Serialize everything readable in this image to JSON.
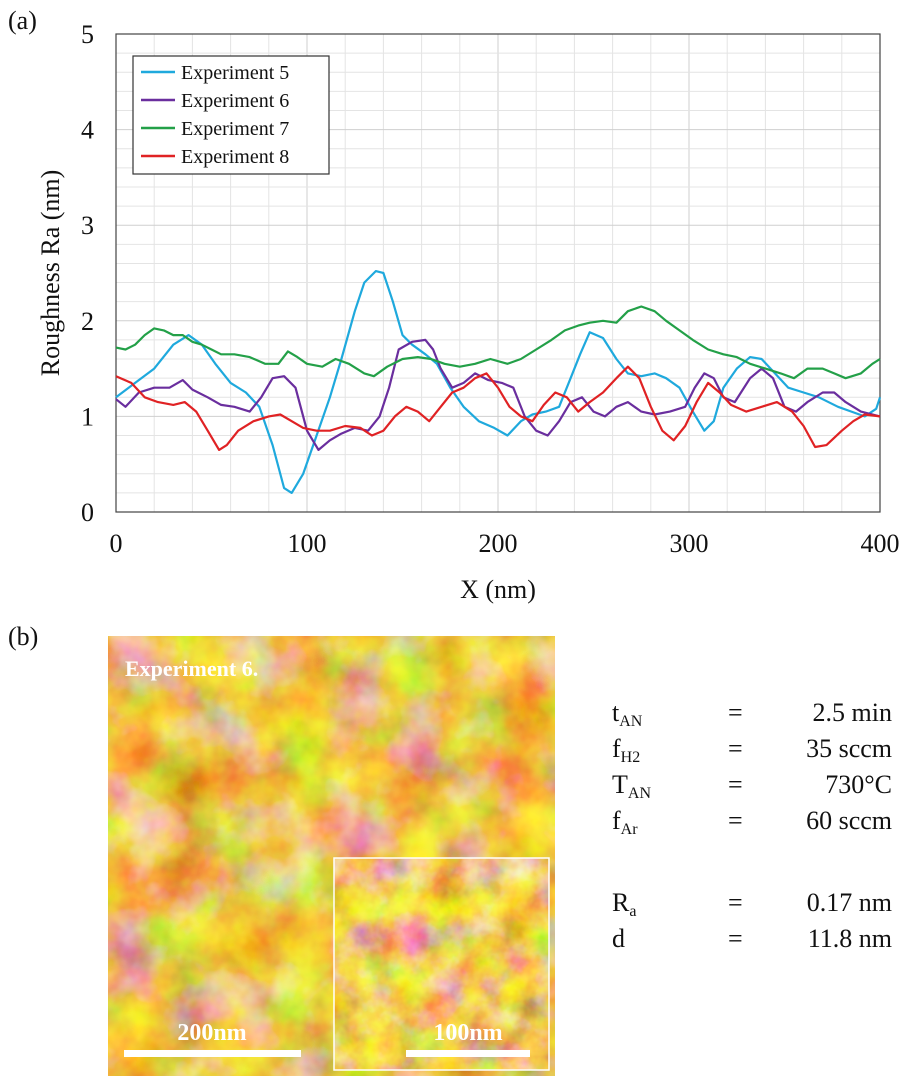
{
  "panel_a_label": "(a)",
  "panel_b_label": "(b)",
  "chart_data": {
    "type": "line",
    "title": "",
    "xlabel": "X (nm)",
    "ylabel": "Roughness Ra (nm)",
    "xlim": [
      0,
      400
    ],
    "ylim": [
      0,
      5
    ],
    "xticks": [
      "0",
      "100",
      "200",
      "300",
      "400"
    ],
    "yticks": [
      "0",
      "1",
      "2",
      "3",
      "4",
      "5"
    ],
    "grid": true,
    "legend_position": "top-left",
    "series": [
      {
        "name": "Experiment 5",
        "color": "#1fa9dd",
        "points": [
          [
            0,
            1.2
          ],
          [
            10,
            1.35
          ],
          [
            20,
            1.5
          ],
          [
            30,
            1.75
          ],
          [
            38,
            1.85
          ],
          [
            45,
            1.75
          ],
          [
            52,
            1.55
          ],
          [
            60,
            1.35
          ],
          [
            68,
            1.25
          ],
          [
            75,
            1.1
          ],
          [
            82,
            0.7
          ],
          [
            88,
            0.25
          ],
          [
            92,
            0.2
          ],
          [
            98,
            0.4
          ],
          [
            105,
            0.8
          ],
          [
            112,
            1.2
          ],
          [
            118,
            1.6
          ],
          [
            125,
            2.1
          ],
          [
            130,
            2.4
          ],
          [
            136,
            2.52
          ],
          [
            140,
            2.5
          ],
          [
            145,
            2.2
          ],
          [
            150,
            1.85
          ],
          [
            155,
            1.75
          ],
          [
            162,
            1.65
          ],
          [
            168,
            1.55
          ],
          [
            175,
            1.3
          ],
          [
            182,
            1.1
          ],
          [
            190,
            0.95
          ],
          [
            198,
            0.88
          ],
          [
            205,
            0.8
          ],
          [
            212,
            0.95
          ],
          [
            218,
            1.02
          ],
          [
            225,
            1.05
          ],
          [
            232,
            1.1
          ],
          [
            238,
            1.4
          ],
          [
            243,
            1.65
          ],
          [
            248,
            1.88
          ],
          [
            255,
            1.82
          ],
          [
            262,
            1.6
          ],
          [
            268,
            1.45
          ],
          [
            275,
            1.42
          ],
          [
            282,
            1.45
          ],
          [
            288,
            1.4
          ],
          [
            295,
            1.3
          ],
          [
            302,
            1.05
          ],
          [
            308,
            0.85
          ],
          [
            313,
            0.95
          ],
          [
            318,
            1.3
          ],
          [
            325,
            1.5
          ],
          [
            332,
            1.62
          ],
          [
            338,
            1.6
          ],
          [
            345,
            1.45
          ],
          [
            352,
            1.3
          ],
          [
            360,
            1.25
          ],
          [
            368,
            1.2
          ],
          [
            378,
            1.1
          ],
          [
            385,
            1.05
          ],
          [
            392,
            1.0
          ],
          [
            398,
            1.08
          ],
          [
            400,
            1.2
          ]
        ]
      },
      {
        "name": "Experiment 6",
        "color": "#6a2e9e",
        "points": [
          [
            0,
            1.18
          ],
          [
            5,
            1.1
          ],
          [
            12,
            1.25
          ],
          [
            20,
            1.3
          ],
          [
            28,
            1.3
          ],
          [
            35,
            1.38
          ],
          [
            40,
            1.28
          ],
          [
            48,
            1.2
          ],
          [
            55,
            1.12
          ],
          [
            62,
            1.1
          ],
          [
            70,
            1.05
          ],
          [
            76,
            1.2
          ],
          [
            82,
            1.4
          ],
          [
            88,
            1.42
          ],
          [
            94,
            1.3
          ],
          [
            100,
            0.85
          ],
          [
            106,
            0.65
          ],
          [
            112,
            0.75
          ],
          [
            118,
            0.82
          ],
          [
            125,
            0.88
          ],
          [
            132,
            0.85
          ],
          [
            138,
            1.0
          ],
          [
            143,
            1.3
          ],
          [
            148,
            1.7
          ],
          [
            155,
            1.78
          ],
          [
            162,
            1.8
          ],
          [
            166,
            1.7
          ],
          [
            170,
            1.5
          ],
          [
            176,
            1.3
          ],
          [
            182,
            1.35
          ],
          [
            188,
            1.45
          ],
          [
            195,
            1.38
          ],
          [
            202,
            1.35
          ],
          [
            208,
            1.3
          ],
          [
            214,
            1.0
          ],
          [
            220,
            0.85
          ],
          [
            226,
            0.8
          ],
          [
            232,
            0.95
          ],
          [
            238,
            1.15
          ],
          [
            244,
            1.2
          ],
          [
            250,
            1.05
          ],
          [
            256,
            1.0
          ],
          [
            262,
            1.1
          ],
          [
            268,
            1.15
          ],
          [
            275,
            1.05
          ],
          [
            282,
            1.02
          ],
          [
            290,
            1.05
          ],
          [
            298,
            1.1
          ],
          [
            303,
            1.3
          ],
          [
            308,
            1.45
          ],
          [
            313,
            1.4
          ],
          [
            318,
            1.2
          ],
          [
            324,
            1.15
          ],
          [
            332,
            1.4
          ],
          [
            338,
            1.5
          ],
          [
            344,
            1.4
          ],
          [
            350,
            1.1
          ],
          [
            356,
            1.05
          ],
          [
            362,
            1.15
          ],
          [
            370,
            1.25
          ],
          [
            376,
            1.25
          ],
          [
            382,
            1.15
          ],
          [
            390,
            1.05
          ],
          [
            400,
            1.0
          ]
        ]
      },
      {
        "name": "Experiment 7",
        "color": "#23a048",
        "points": [
          [
            0,
            1.72
          ],
          [
            5,
            1.7
          ],
          [
            10,
            1.75
          ],
          [
            15,
            1.85
          ],
          [
            20,
            1.92
          ],
          [
            25,
            1.9
          ],
          [
            30,
            1.85
          ],
          [
            35,
            1.85
          ],
          [
            40,
            1.78
          ],
          [
            45,
            1.75
          ],
          [
            50,
            1.7
          ],
          [
            55,
            1.65
          ],
          [
            62,
            1.65
          ],
          [
            70,
            1.62
          ],
          [
            78,
            1.55
          ],
          [
            85,
            1.55
          ],
          [
            90,
            1.68
          ],
          [
            95,
            1.62
          ],
          [
            100,
            1.55
          ],
          [
            108,
            1.52
          ],
          [
            115,
            1.6
          ],
          [
            122,
            1.55
          ],
          [
            130,
            1.45
          ],
          [
            135,
            1.42
          ],
          [
            142,
            1.52
          ],
          [
            150,
            1.6
          ],
          [
            158,
            1.62
          ],
          [
            165,
            1.6
          ],
          [
            172,
            1.55
          ],
          [
            180,
            1.52
          ],
          [
            188,
            1.55
          ],
          [
            196,
            1.6
          ],
          [
            205,
            1.55
          ],
          [
            212,
            1.6
          ],
          [
            220,
            1.7
          ],
          [
            228,
            1.8
          ],
          [
            235,
            1.9
          ],
          [
            242,
            1.95
          ],
          [
            248,
            1.98
          ],
          [
            255,
            2.0
          ],
          [
            262,
            1.98
          ],
          [
            268,
            2.1
          ],
          [
            275,
            2.15
          ],
          [
            282,
            2.1
          ],
          [
            288,
            2.0
          ],
          [
            295,
            1.9
          ],
          [
            302,
            1.8
          ],
          [
            310,
            1.7
          ],
          [
            318,
            1.65
          ],
          [
            325,
            1.62
          ],
          [
            332,
            1.55
          ],
          [
            340,
            1.5
          ],
          [
            348,
            1.45
          ],
          [
            355,
            1.4
          ],
          [
            362,
            1.5
          ],
          [
            370,
            1.5
          ],
          [
            376,
            1.45
          ],
          [
            382,
            1.4
          ],
          [
            390,
            1.45
          ],
          [
            396,
            1.55
          ],
          [
            400,
            1.6
          ]
        ]
      },
      {
        "name": "Experiment 8",
        "color": "#e02224",
        "points": [
          [
            0,
            1.42
          ],
          [
            8,
            1.35
          ],
          [
            15,
            1.2
          ],
          [
            22,
            1.15
          ],
          [
            30,
            1.12
          ],
          [
            36,
            1.15
          ],
          [
            42,
            1.05
          ],
          [
            48,
            0.85
          ],
          [
            54,
            0.65
          ],
          [
            58,
            0.7
          ],
          [
            64,
            0.85
          ],
          [
            72,
            0.95
          ],
          [
            80,
            1.0
          ],
          [
            86,
            1.02
          ],
          [
            92,
            0.95
          ],
          [
            98,
            0.88
          ],
          [
            105,
            0.85
          ],
          [
            112,
            0.85
          ],
          [
            120,
            0.9
          ],
          [
            128,
            0.88
          ],
          [
            134,
            0.8
          ],
          [
            140,
            0.85
          ],
          [
            146,
            1.0
          ],
          [
            152,
            1.1
          ],
          [
            158,
            1.05
          ],
          [
            164,
            0.95
          ],
          [
            170,
            1.1
          ],
          [
            176,
            1.25
          ],
          [
            182,
            1.3
          ],
          [
            188,
            1.4
          ],
          [
            194,
            1.45
          ],
          [
            200,
            1.3
          ],
          [
            206,
            1.1
          ],
          [
            212,
            1.0
          ],
          [
            218,
            0.95
          ],
          [
            224,
            1.12
          ],
          [
            230,
            1.25
          ],
          [
            236,
            1.2
          ],
          [
            242,
            1.05
          ],
          [
            248,
            1.15
          ],
          [
            255,
            1.25
          ],
          [
            262,
            1.4
          ],
          [
            268,
            1.52
          ],
          [
            274,
            1.4
          ],
          [
            280,
            1.1
          ],
          [
            286,
            0.85
          ],
          [
            292,
            0.75
          ],
          [
            298,
            0.9
          ],
          [
            304,
            1.15
          ],
          [
            310,
            1.35
          ],
          [
            316,
            1.25
          ],
          [
            322,
            1.12
          ],
          [
            330,
            1.05
          ],
          [
            338,
            1.1
          ],
          [
            346,
            1.15
          ],
          [
            354,
            1.05
          ],
          [
            360,
            0.9
          ],
          [
            366,
            0.68
          ],
          [
            372,
            0.7
          ],
          [
            380,
            0.85
          ],
          [
            386,
            0.95
          ],
          [
            392,
            1.02
          ],
          [
            400,
            1.0
          ]
        ]
      }
    ]
  },
  "afm_image": {
    "title": "Experiment 6.",
    "scale_bar_main": "200nm",
    "scale_bar_inset": "100nm"
  },
  "parameters": [
    {
      "symbol": "t",
      "sub": "AN",
      "eq": "=",
      "value": "2.5 min"
    },
    {
      "symbol": "f",
      "sub": "H2",
      "eq": "=",
      "value": "35 sccm"
    },
    {
      "symbol": "T",
      "sub": "AN",
      "eq": "=",
      "value": "730°C"
    },
    {
      "symbol": "f",
      "sub": "Ar",
      "eq": "=",
      "value": "60 sccm"
    }
  ],
  "results": [
    {
      "symbol": "R",
      "sub": "a",
      "eq": "=",
      "value": "0.17 nm"
    },
    {
      "symbol": "d",
      "sub": "",
      "eq": "=",
      "value": "11.8 nm"
    }
  ]
}
